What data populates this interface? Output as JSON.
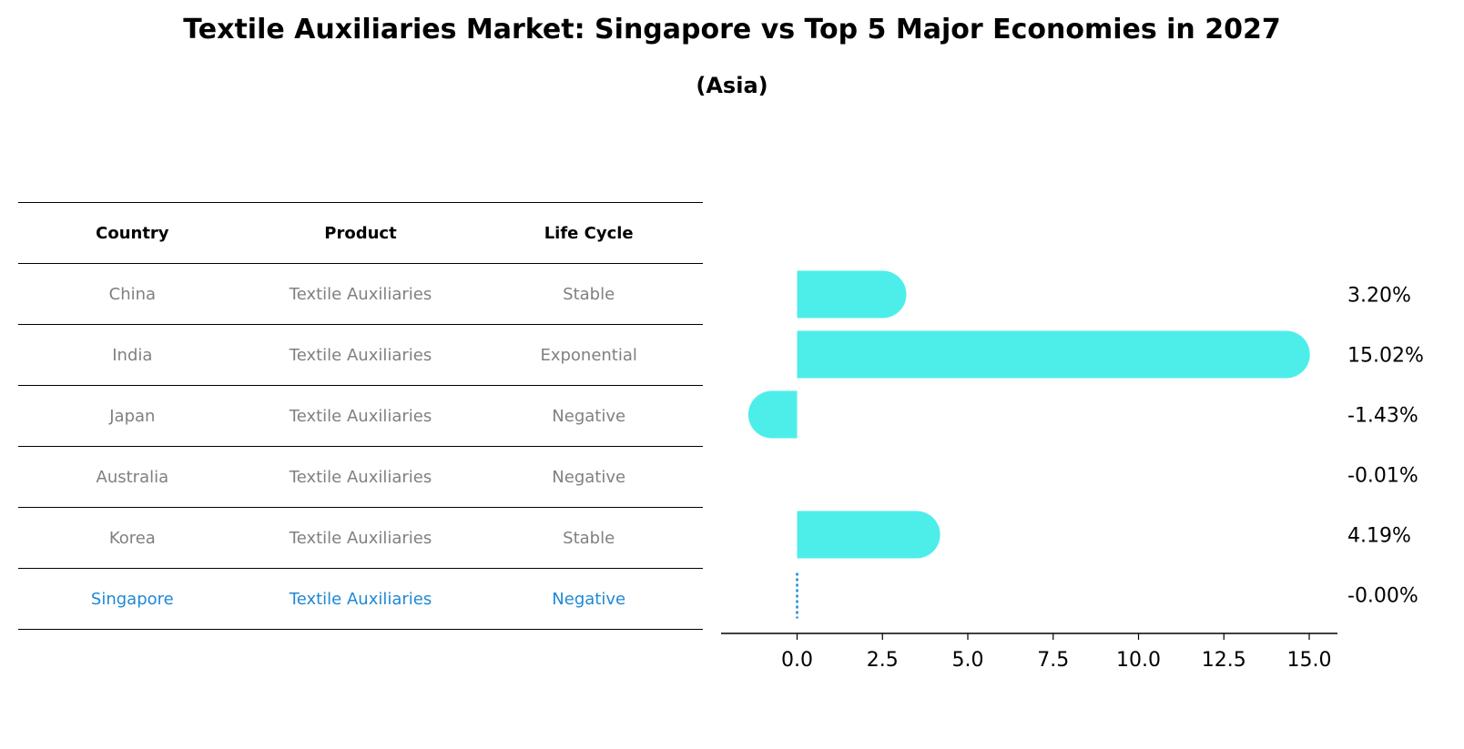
{
  "title": "Textile Auxiliaries Market: Singapore vs Top 5 Major Economies in 2027",
  "subtitle": "(Asia)",
  "table": {
    "headers": [
      "Country",
      "Product",
      "Life Cycle"
    ],
    "rows": [
      [
        "China",
        "Textile Auxiliaries",
        "Stable"
      ],
      [
        "India",
        "Textile Auxiliaries",
        "Exponential"
      ],
      [
        "Japan",
        "Textile Auxiliaries",
        "Negative"
      ],
      [
        "Australia",
        "Textile Auxiliaries",
        "Negative"
      ],
      [
        "Korea",
        "Textile Auxiliaries",
        "Stable"
      ],
      [
        "Singapore",
        "Textile Auxiliaries",
        "Negative"
      ]
    ]
  },
  "colors": {
    "bar": "#4DEEEA",
    "highlight": "#1f88d6",
    "muted": "#808080"
  },
  "chart_data": {
    "type": "bar",
    "orientation": "horizontal",
    "categories": [
      "China",
      "India",
      "Japan",
      "Australia",
      "Korea",
      "Singapore"
    ],
    "values": [
      3.2,
      15.02,
      -1.43,
      -0.01,
      4.19,
      -0.0
    ],
    "value_labels": [
      "3.20%",
      "15.02%",
      "-1.43%",
      "-0.01%",
      "4.19%",
      "-0.00%"
    ],
    "xlim": [
      -2.25,
      15.9
    ],
    "xticks": [
      0.0,
      2.5,
      5.0,
      7.5,
      10.0,
      12.5,
      15.0
    ],
    "xtick_labels": [
      "0.0",
      "2.5",
      "5.0",
      "7.5",
      "10.0",
      "12.5",
      "15.0"
    ],
    "highlight_category": "Singapore",
    "highlight_style": "dotted line"
  }
}
